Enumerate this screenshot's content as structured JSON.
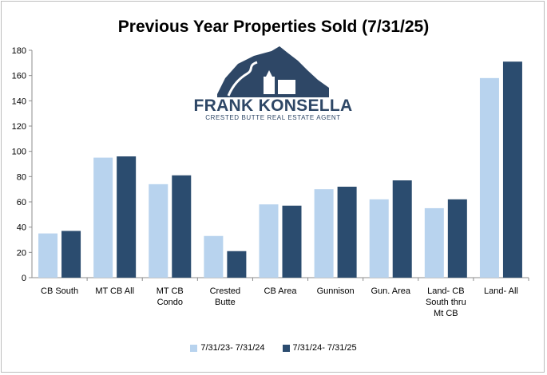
{
  "chart_data": {
    "type": "bar",
    "title": "Previous Year Properties Sold (7/31/25)",
    "categories": [
      "CB South",
      "MT CB All",
      "MT CB Condo",
      "Crested Butte",
      "CB Area",
      "Gunnison",
      "Gun. Area",
      "Land- CB South thru Mt CB",
      "Land- All"
    ],
    "category_lines": [
      [
        "CB South"
      ],
      [
        "MT CB All"
      ],
      [
        "MT CB",
        "Condo"
      ],
      [
        "Crested",
        "Butte"
      ],
      [
        "CB Area"
      ],
      [
        "Gunnison"
      ],
      [
        "Gun. Area"
      ],
      [
        "Land- CB",
        "South thru",
        "Mt CB"
      ],
      [
        "Land- All"
      ]
    ],
    "series": [
      {
        "name": "7/31/23- 7/31/24",
        "color": "#b8d3ee",
        "values": [
          35,
          95,
          74,
          33,
          58,
          70,
          62,
          55,
          158
        ]
      },
      {
        "name": "7/31/24- 7/31/25",
        "color": "#2b4c6f",
        "values": [
          37,
          96,
          81,
          21,
          57,
          72,
          77,
          62,
          171
        ]
      }
    ],
    "ylim": [
      0,
      180
    ],
    "yticks": [
      0,
      20,
      40,
      60,
      80,
      100,
      120,
      140,
      160,
      180
    ],
    "grid": false,
    "legend": "bottom",
    "xlabel": "",
    "ylabel": ""
  },
  "logo": {
    "name": "FRANK KONSELLA",
    "tagline": "CRESTED BUTTE REAL ESTATE AGENT"
  }
}
